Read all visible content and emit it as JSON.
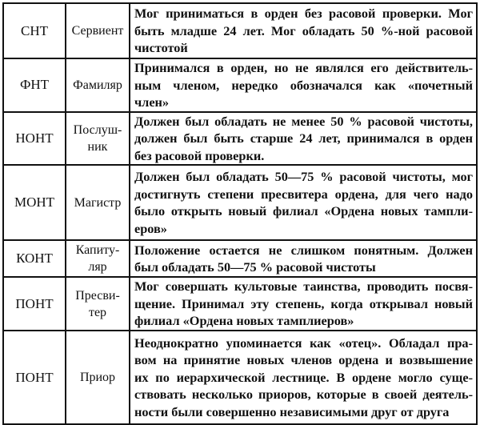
{
  "rows": [
    {
      "code": "СНТ",
      "name": [
        "Сервиент"
      ],
      "desc": [
        "Мог приниматься в орден без расовой проверки. Мог",
        "быть младше 24 лет. Мог обладать 50 %-ной расовой",
        "чистотой"
      ]
    },
    {
      "code": "ФНТ",
      "name": [
        "Фамиляр"
      ],
      "desc": [
        "Принимался в орден, но не являлся его действитель-",
        "ным членом, нередко обозначался как «почетный",
        "член»"
      ]
    },
    {
      "code": "НОНТ",
      "name": [
        "Послуш-",
        "ник"
      ],
      "desc": [
        "Должен был обладать не менее 50 % расовой чистоты,",
        "должен был быть старше 24 лет, принимался в орден",
        "без расовой проверки."
      ]
    },
    {
      "code": "МОНТ",
      "name": [
        "Магистр"
      ],
      "desc": [
        "Должен был обладать 50—75 % расовой чистоты, мог",
        "достигнуть степени пресвитера ордена, для чего надо",
        "было открыть новый филиал «Ордена новых тампли-",
        "еров»"
      ]
    },
    {
      "code": "КОНТ",
      "name": [
        "Капиту-",
        "ляр"
      ],
      "desc": [
        "Положение остается не слишком понятным. Должен",
        "был обладать 50—75 % расовой чистоты"
      ]
    },
    {
      "code": "ПОНТ",
      "name": [
        "Пресви-",
        "тер"
      ],
      "desc": [
        "Мог совершать культовые таинства, проводить посвя-",
        "щение. Принимал эту степень, когда открывал новый",
        "филиал «Ордена новых тамплиеров»"
      ]
    },
    {
      "code": "ПОНТ",
      "name": [
        "Приор"
      ],
      "desc": [
        "Неоднократно упоминается как «отец». Обладал пра-",
        "вом на принятие новых членов ордена и возвышение",
        "их по иерархической лестнице. В ордене могло суще-",
        "ствовать несколько приоров, которые в своей деятель-",
        "ности были совершенно независимыми друг от друга"
      ]
    }
  ]
}
